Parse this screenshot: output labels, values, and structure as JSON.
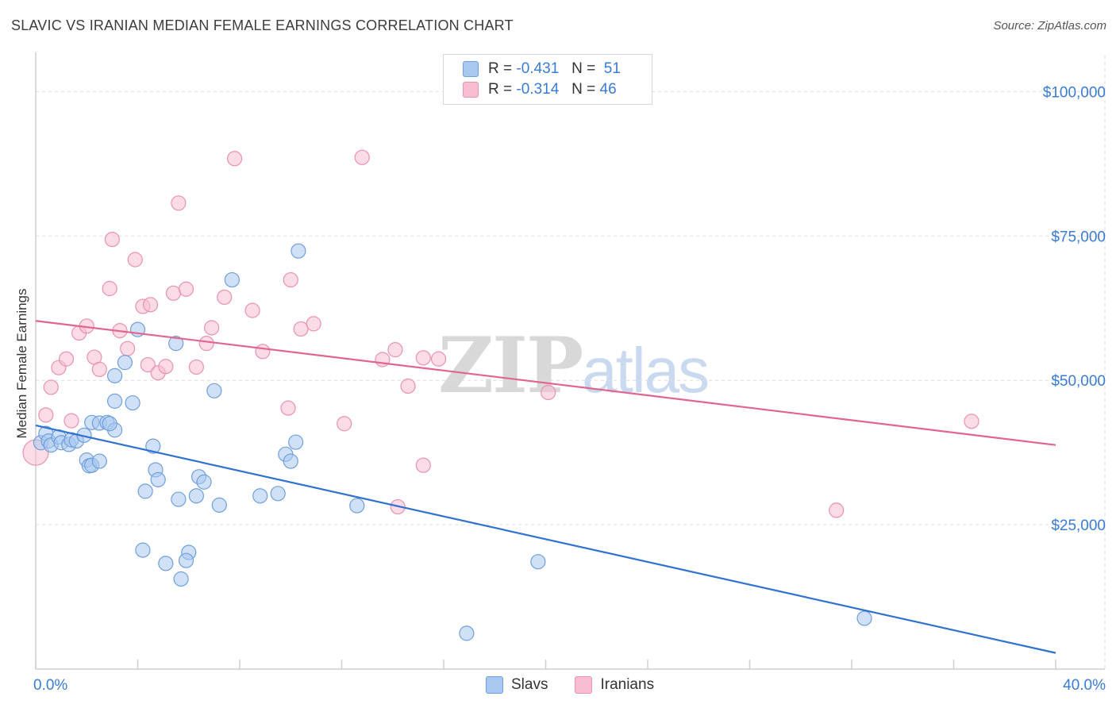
{
  "title": "SLAVIC VS IRANIAN MEDIAN FEMALE EARNINGS CORRELATION CHART",
  "source": "Source: ZipAtlas.com",
  "watermark": {
    "zip": "ZIP",
    "atlas": "atlas"
  },
  "legend_top": [
    {
      "r_label": "R =",
      "r_value": "-0.431",
      "n_label": "N =",
      "n_value": "51"
    },
    {
      "r_label": "R =",
      "r_value": "-0.314",
      "n_label": "N =",
      "n_value": "46"
    }
  ],
  "legend_bottom": [
    "Slavs",
    "Iranians"
  ],
  "colors": {
    "slavs_fill": "#a9c8f0",
    "slavs_stroke": "#6f9fdc",
    "slavs_line": "#2f72d0",
    "iranians_fill": "#f7bdd0",
    "iranians_stroke": "#e892b0",
    "iranians_line": "#e06690",
    "grid": "#dddddd",
    "axis_text": "#3a7bd5"
  },
  "chart_data": {
    "type": "scatter",
    "title": "SLAVIC VS IRANIAN MEDIAN FEMALE EARNINGS CORRELATION CHART",
    "xlabel": "",
    "ylabel": "Median Female Earnings",
    "xlim": [
      0,
      40
    ],
    "ylim": [
      0,
      105000
    ],
    "x_tick_labels": [
      "0.0%",
      "40.0%"
    ],
    "y_ticks": [
      25000,
      50000,
      75000,
      100000
    ],
    "y_tick_labels": [
      "$25,000",
      "$50,000",
      "$75,000",
      "$100,000"
    ],
    "series": [
      {
        "name": "Slavs",
        "R": -0.431,
        "N": 51,
        "trend": {
          "x": [
            0,
            40
          ],
          "y": [
            42200,
            2800
          ]
        },
        "points": [
          [
            0.2,
            39200
          ],
          [
            0.4,
            40800
          ],
          [
            0.5,
            39500
          ],
          [
            0.6,
            38800
          ],
          [
            0.9,
            40200
          ],
          [
            1.0,
            39200
          ],
          [
            1.3,
            38900
          ],
          [
            1.4,
            39700
          ],
          [
            1.6,
            39500
          ],
          [
            1.9,
            40500
          ],
          [
            2.2,
            42700
          ],
          [
            2.5,
            42600
          ],
          [
            2.8,
            42700
          ],
          [
            2.0,
            36200
          ],
          [
            2.1,
            35200
          ],
          [
            2.2,
            35300
          ],
          [
            2.5,
            36000
          ],
          [
            3.1,
            41400
          ],
          [
            3.1,
            46400
          ],
          [
            3.8,
            46100
          ],
          [
            3.5,
            53100
          ],
          [
            3.1,
            50800
          ],
          [
            4.0,
            58800
          ],
          [
            4.6,
            38600
          ],
          [
            4.7,
            34500
          ],
          [
            4.8,
            32800
          ],
          [
            4.3,
            30800
          ],
          [
            5.6,
            29400
          ],
          [
            6.3,
            30000
          ],
          [
            6.4,
            33300
          ],
          [
            6.6,
            32400
          ],
          [
            7.2,
            28400
          ],
          [
            7.0,
            48200
          ],
          [
            5.5,
            56400
          ],
          [
            7.7,
            67400
          ],
          [
            8.8,
            30000
          ],
          [
            9.5,
            30400
          ],
          [
            9.8,
            37200
          ],
          [
            10.0,
            36000
          ],
          [
            10.2,
            39300
          ],
          [
            10.3,
            72400
          ],
          [
            4.2,
            20600
          ],
          [
            5.1,
            18300
          ],
          [
            6.0,
            20200
          ],
          [
            5.9,
            18800
          ],
          [
            5.7,
            15600
          ],
          [
            12.6,
            28300
          ],
          [
            19.7,
            18600
          ],
          [
            16.9,
            6200
          ],
          [
            32.5,
            8800
          ],
          [
            2.9,
            42500
          ]
        ]
      },
      {
        "name": "Iranians",
        "R": -0.314,
        "N": 46,
        "trend": {
          "x": [
            0,
            40
          ],
          "y": [
            60300,
            38800
          ]
        },
        "points": [
          [
            0.0,
            37500
          ],
          [
            0.4,
            44000
          ],
          [
            0.6,
            48800
          ],
          [
            0.9,
            52200
          ],
          [
            1.2,
            53700
          ],
          [
            1.4,
            43000
          ],
          [
            1.7,
            58200
          ],
          [
            2.0,
            59400
          ],
          [
            2.3,
            54000
          ],
          [
            2.5,
            51900
          ],
          [
            2.9,
            65900
          ],
          [
            3.0,
            74400
          ],
          [
            3.3,
            58600
          ],
          [
            3.6,
            55500
          ],
          [
            3.9,
            70900
          ],
          [
            4.2,
            62800
          ],
          [
            4.4,
            52700
          ],
          [
            4.5,
            63100
          ],
          [
            4.8,
            51300
          ],
          [
            5.1,
            52400
          ],
          [
            5.4,
            65100
          ],
          [
            5.6,
            80700
          ],
          [
            5.9,
            65800
          ],
          [
            6.3,
            52300
          ],
          [
            6.7,
            56400
          ],
          [
            6.9,
            59100
          ],
          [
            7.4,
            64400
          ],
          [
            7.8,
            88400
          ],
          [
            8.5,
            62100
          ],
          [
            8.9,
            55000
          ],
          [
            9.9,
            45200
          ],
          [
            10.0,
            67400
          ],
          [
            10.4,
            58900
          ],
          [
            10.9,
            59800
          ],
          [
            12.1,
            42500
          ],
          [
            12.8,
            88600
          ],
          [
            13.6,
            53600
          ],
          [
            14.1,
            55300
          ],
          [
            14.6,
            49000
          ],
          [
            14.2,
            28100
          ],
          [
            15.2,
            35300
          ],
          [
            15.2,
            53900
          ],
          [
            15.8,
            53700
          ],
          [
            20.1,
            47900
          ],
          [
            31.4,
            27500
          ],
          [
            36.7,
            42900
          ]
        ]
      }
    ]
  }
}
